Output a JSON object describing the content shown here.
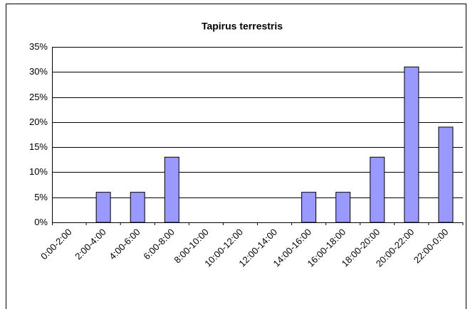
{
  "chart_data": {
    "type": "bar",
    "title": "Tapirus terrestris",
    "categories": [
      "0:00-2:00",
      "2:00-4:00",
      "4:00-6:00",
      "6:00-8:00",
      "8:00-10:00",
      "10:00-12:00",
      "12:00-14:00",
      "14:00-16:00",
      "16:00-18:00",
      "18:00-20:00",
      "20:00-22:00",
      "22:00-0:00"
    ],
    "values": [
      0,
      6,
      6,
      13,
      0,
      0,
      0,
      6,
      6,
      13,
      31,
      19
    ],
    "color": "#9999ff",
    "ylim": [
      0,
      35
    ],
    "yticks": [
      {
        "value": 0,
        "label": "0%"
      },
      {
        "value": 5,
        "label": "5%"
      },
      {
        "value": 10,
        "label": "10%"
      },
      {
        "value": 15,
        "label": "15%"
      },
      {
        "value": 20,
        "label": "20%"
      },
      {
        "value": 25,
        "label": "25%"
      },
      {
        "value": 30,
        "label": "30%"
      },
      {
        "value": 35,
        "label": "35%"
      }
    ],
    "grid": true
  }
}
